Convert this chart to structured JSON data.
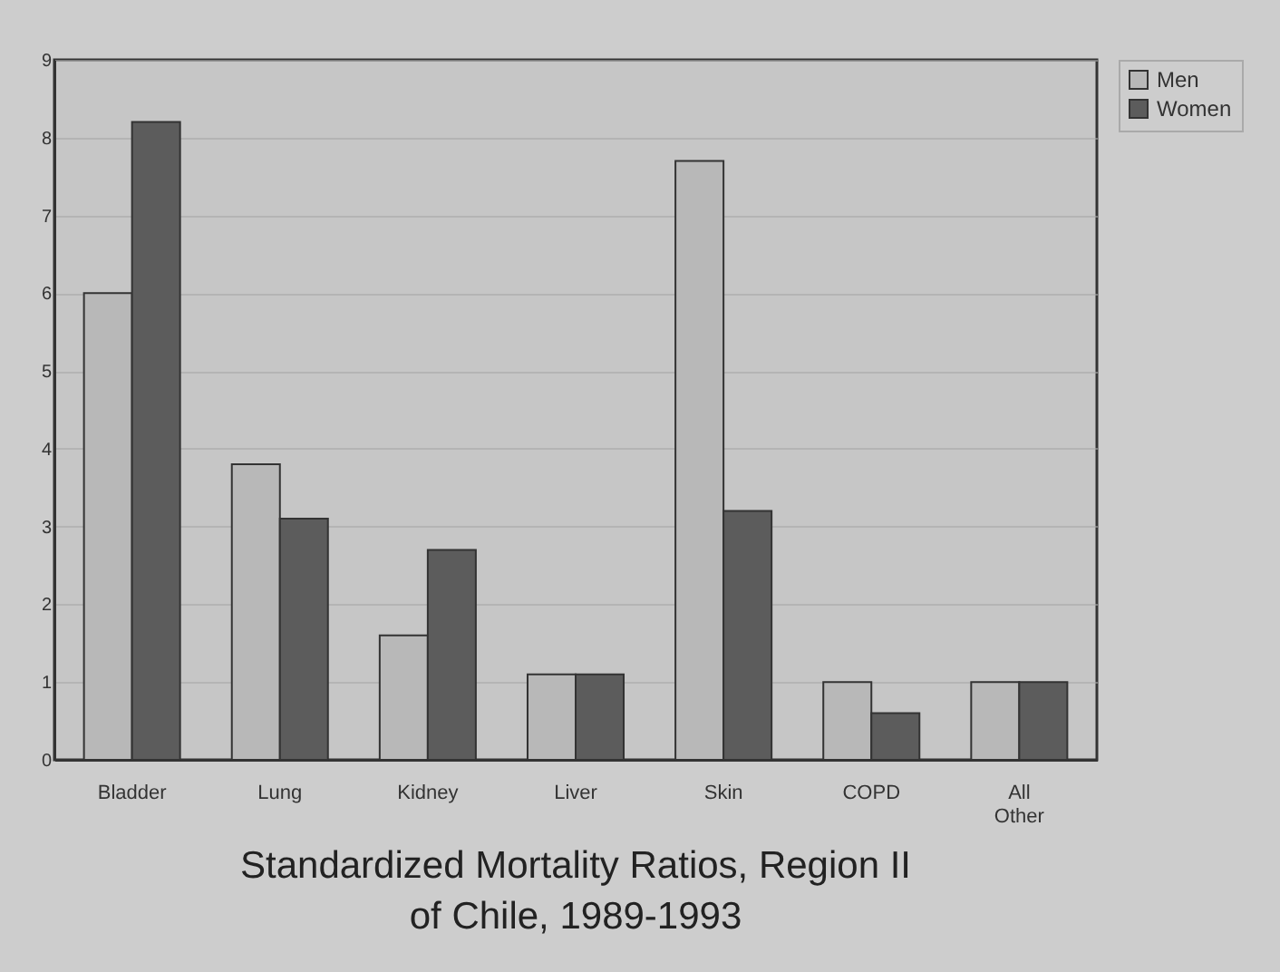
{
  "chart_data": {
    "type": "bar",
    "title": "Standardized Mortality Ratios, Region II of Chile, 1989-1993",
    "categories": [
      "Bladder",
      "Lung",
      "Kidney",
      "Liver",
      "Skin",
      "COPD",
      "All Other"
    ],
    "series": [
      {
        "name": "Men",
        "color": "#b8b8b8",
        "values": [
          6.0,
          3.8,
          1.6,
          1.1,
          7.7,
          1.0,
          1.0
        ]
      },
      {
        "name": "Women",
        "color": "#5c5c5c",
        "values": [
          8.2,
          3.1,
          2.7,
          1.1,
          3.2,
          0.6,
          1.0
        ]
      }
    ],
    "ylim": [
      0,
      9
    ],
    "yticks": [
      0,
      1,
      2,
      3,
      4,
      5,
      6,
      7,
      8,
      9
    ],
    "grid": "y",
    "legend": "right"
  }
}
